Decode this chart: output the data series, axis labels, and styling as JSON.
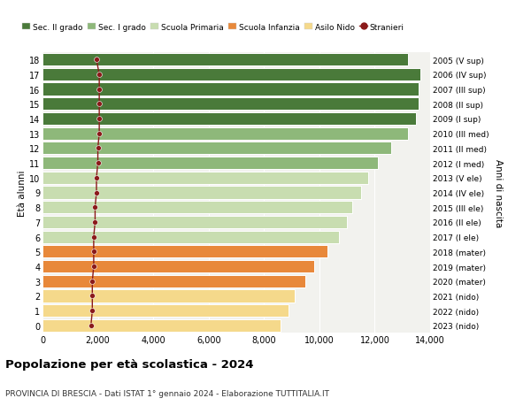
{
  "ages": [
    0,
    1,
    2,
    3,
    4,
    5,
    6,
    7,
    8,
    9,
    10,
    11,
    12,
    13,
    14,
    15,
    16,
    17,
    18
  ],
  "bar_values": [
    8600,
    8900,
    9100,
    9500,
    9800,
    10300,
    10700,
    11000,
    11200,
    11500,
    11750,
    12100,
    12600,
    13200,
    13500,
    13600,
    13600,
    13650,
    13200
  ],
  "stranieri_values": [
    1750,
    1800,
    1800,
    1800,
    1850,
    1850,
    1850,
    1900,
    1900,
    1950,
    1950,
    2000,
    2000,
    2050,
    2050,
    2050,
    2050,
    2050,
    1950
  ],
  "right_labels": [
    "2023 (nido)",
    "2022 (nido)",
    "2021 (nido)",
    "2020 (mater)",
    "2019 (mater)",
    "2018 (mater)",
    "2017 (I ele)",
    "2016 (II ele)",
    "2015 (III ele)",
    "2014 (IV ele)",
    "2013 (V ele)",
    "2012 (I med)",
    "2011 (II med)",
    "2010 (III med)",
    "2009 (I sup)",
    "2008 (II sup)",
    "2007 (III sup)",
    "2006 (IV sup)",
    "2005 (V sup)"
  ],
  "bar_colors": [
    "#f5d98b",
    "#f5d98b",
    "#f5d98b",
    "#e8883a",
    "#e8883a",
    "#e8883a",
    "#c8ddb0",
    "#c8ddb0",
    "#c8ddb0",
    "#c8ddb0",
    "#c8ddb0",
    "#8eb87a",
    "#8eb87a",
    "#8eb87a",
    "#4a7a3a",
    "#4a7a3a",
    "#4a7a3a",
    "#4a7a3a",
    "#4a7a3a"
  ],
  "stranieri_color": "#8b1a1a",
  "line_color": "#8b1a1a",
  "legend_items": [
    {
      "label": "Sec. II grado",
      "color": "#4a7a3a"
    },
    {
      "label": "Sec. I grado",
      "color": "#8eb87a"
    },
    {
      "label": "Scuola Primaria",
      "color": "#c8ddb0"
    },
    {
      "label": "Scuola Infanzia",
      "color": "#e8883a"
    },
    {
      "label": "Asilo Nido",
      "color": "#f5d98b"
    },
    {
      "label": "Stranieri",
      "color": "#8b1a1a"
    }
  ],
  "ylabel_left": "Età alunni",
  "ylabel_right": "Anni di nascita",
  "title": "Popolazione per età scolastica - 2024",
  "subtitle": "PROVINCIA DI BRESCIA - Dati ISTAT 1° gennaio 2024 - Elaborazione TUTTITALIA.IT",
  "xlim": [
    0,
    14000
  ],
  "xticks": [
    0,
    2000,
    4000,
    6000,
    8000,
    10000,
    12000,
    14000
  ],
  "background_color": "#ffffff",
  "bar_bg_color": "#f2f2ee"
}
